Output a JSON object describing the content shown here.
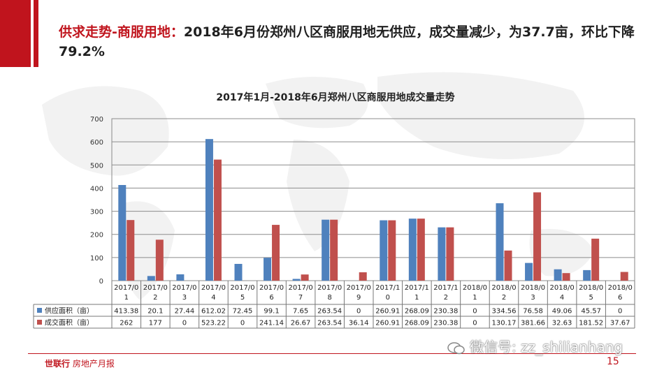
{
  "headline": {
    "prefix": "供求走势-商服用地：",
    "text": "2018年6月份郑州八区商服用地无供应，成交量减少，为37.7亩，环比下降79.2%"
  },
  "footer": {
    "logo_main": "世联行",
    "logo_sub": "房地产月报",
    "page_number": "15",
    "watermark": "微信号: zz_shilianhang"
  },
  "colors": {
    "brand_red": "#c0141d",
    "supply": "#4f81bd",
    "deal": "#c0504d"
  },
  "chart_data": {
    "type": "bar",
    "title": "2017年1月-2018年6月郑州八区商服用地成交量走势",
    "categories": [
      "2017/01",
      "2017/02",
      "2017/03",
      "2017/04",
      "2017/05",
      "2017/06",
      "2017/07",
      "2017/08",
      "2017/09",
      "2017/10",
      "2017/11",
      "2017/12",
      "2018/01",
      "2018/02",
      "2018/03",
      "2018/04",
      "2018/05",
      "2018/06"
    ],
    "category_lines": [
      [
        "2017/0",
        "1"
      ],
      [
        "2017/0",
        "2"
      ],
      [
        "2017/0",
        "3"
      ],
      [
        "2017/0",
        "4"
      ],
      [
        "2017/0",
        "5"
      ],
      [
        "2017/0",
        "6"
      ],
      [
        "2017/0",
        "7"
      ],
      [
        "2017/0",
        "8"
      ],
      [
        "2017/0",
        "9"
      ],
      [
        "2017/1",
        "0"
      ],
      [
        "2017/1",
        "1"
      ],
      [
        "2017/1",
        "2"
      ],
      [
        "2018/0",
        "1"
      ],
      [
        "2018/0",
        "2"
      ],
      [
        "2018/0",
        "3"
      ],
      [
        "2018/0",
        "4"
      ],
      [
        "2018/0",
        "5"
      ],
      [
        "2018/0",
        "6"
      ]
    ],
    "series": [
      {
        "name": "供应面积（亩）",
        "color": "#4f81bd",
        "values": [
          413.38,
          20.1,
          27.44,
          612.02,
          72.45,
          99.1,
          7.65,
          263.54,
          0,
          260.91,
          268.09,
          230.38,
          0,
          334.56,
          76.58,
          49.06,
          45.57,
          0
        ]
      },
      {
        "name": "成交面积（亩）",
        "color": "#c0504d",
        "values": [
          262,
          177,
          0,
          523.22,
          0,
          241.14,
          26.67,
          263.54,
          36.14,
          260.91,
          268.09,
          230.38,
          0,
          130.17,
          381.66,
          32.63,
          181.52,
          37.67
        ]
      }
    ],
    "table_labels": [
      [
        "413.38",
        "20.1",
        "27.44",
        "612.02",
        "72.45",
        "99.1",
        "7.65",
        "263.54",
        "0",
        "260.91",
        "268.09",
        "230.38",
        "0",
        "334.56",
        "76.58",
        "49.06",
        "45.57",
        "0"
      ],
      [
        "262",
        "177",
        "0",
        "523.22",
        "0",
        "241.14",
        "26.67",
        "263.54",
        "36.14",
        "260.91",
        "268.09",
        "230.38",
        "0",
        "130.17",
        "381.66",
        "32.63",
        "181.52",
        "37.67"
      ]
    ],
    "ylim": [
      0,
      700
    ],
    "yticks": [
      0,
      100,
      200,
      300,
      400,
      500,
      600,
      700
    ],
    "grid": true,
    "legend": "data-table"
  }
}
